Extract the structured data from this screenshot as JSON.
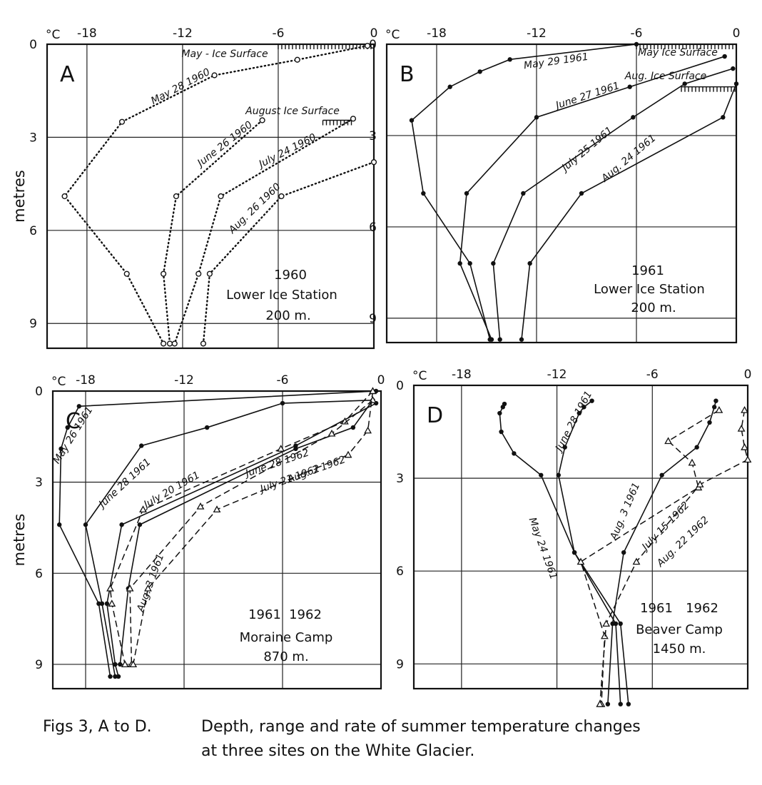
{
  "chart_data": [
    {
      "type": "line",
      "panel_label": "A",
      "unit_label": "°C",
      "ylabel": "metres",
      "x_tick_labels": [
        "-18",
        "-12",
        "-6",
        "0"
      ],
      "y_tick_labels": [
        "0",
        "3",
        "6",
        "9"
      ],
      "xlim": [
        -20.5,
        0
      ],
      "ylim": [
        0,
        9.8
      ],
      "site_text": [
        "1960",
        "Lower Ice Station",
        "200 m."
      ],
      "annotations": [
        "May - Ice Surface",
        "August Ice Surface"
      ],
      "surfaces": [
        {
          "x_start": -6.0,
          "x_end": 0.0,
          "depth": 0.0
        },
        {
          "x_start": -3.2,
          "x_end": -1.4,
          "depth": 2.45
        }
      ],
      "series": [
        {
          "name": "May 28 1960",
          "style": "dotted",
          "marker": "circle",
          "x": [
            -0.4,
            -4.8,
            -10.0,
            -15.8,
            -19.4,
            -15.5,
            -13.2
          ],
          "y": [
            0.05,
            0.5,
            1.0,
            2.5,
            4.9,
            7.4,
            9.65
          ]
        },
        {
          "name": "June 26 1960",
          "style": "dotted",
          "marker": "circle",
          "x": [
            -7.0,
            -12.4,
            -13.2,
            -12.8
          ],
          "y": [
            2.45,
            4.9,
            7.4,
            9.65
          ]
        },
        {
          "name": "July 24 1960",
          "style": "dotted",
          "marker": "circle",
          "x": [
            -1.3,
            -9.6,
            -11.0,
            -12.5
          ],
          "y": [
            2.4,
            4.9,
            7.4,
            9.65
          ]
        },
        {
          "name": "Aug. 26 1960",
          "style": "dotted",
          "marker": "circle",
          "x": [
            0.0,
            -5.8,
            -10.3,
            -10.7
          ],
          "y": [
            3.8,
            4.9,
            7.4,
            9.65
          ]
        }
      ]
    },
    {
      "type": "line",
      "panel_label": "B",
      "unit_label": "°C",
      "ylabel": "",
      "x_tick_labels": [
        "-18",
        "-12",
        "-6",
        "0"
      ],
      "y_tick_labels": [
        "0",
        "3",
        "6",
        "9"
      ],
      "xlim": [
        -21,
        0
      ],
      "ylim": [
        0,
        9.8
      ],
      "site_text": [
        "1961",
        "Lower Ice Station",
        "200 m."
      ],
      "annotations": [
        "May Ice Surface",
        "Aug. Ice Surface"
      ],
      "surfaces": [
        {
          "x_start": -6.0,
          "x_end": 0.0,
          "depth": 0.0
        },
        {
          "x_start": -3.3,
          "x_end": 0.0,
          "depth": 1.4
        }
      ],
      "series": [
        {
          "name": "May 29 1961",
          "style": "solid",
          "marker": "dot",
          "x": [
            -6.0,
            -13.6,
            -15.4,
            -17.2,
            -19.5,
            -18.8,
            -16.0,
            -14.8
          ],
          "y": [
            0.0,
            0.5,
            0.9,
            1.4,
            2.5,
            4.9,
            7.2,
            9.7
          ]
        },
        {
          "name": "June 27 1961",
          "style": "solid",
          "marker": "dot",
          "x": [
            -0.7,
            -6.4,
            -12.0,
            -16.2,
            -16.6,
            -14.7
          ],
          "y": [
            0.4,
            1.4,
            2.4,
            4.9,
            7.2,
            9.7
          ]
        },
        {
          "name": "July 25 1961",
          "style": "solid",
          "marker": "dot",
          "x": [
            -0.2,
            -3.1,
            -6.2,
            -12.8,
            -14.6,
            -14.2
          ],
          "y": [
            0.8,
            1.3,
            2.4,
            4.9,
            7.2,
            9.7
          ]
        },
        {
          "name": "Aug. 24 1961",
          "style": "solid",
          "marker": "dot",
          "x": [
            0.0,
            -0.8,
            -9.3,
            -12.4,
            -12.9
          ],
          "y": [
            1.3,
            2.4,
            4.9,
            7.2,
            9.7
          ]
        }
      ]
    },
    {
      "type": "line",
      "panel_label": "C",
      "unit_label": "°C",
      "ylabel": "metres",
      "x_tick_labels": [
        "-18",
        "-12",
        "-6",
        "0"
      ],
      "y_tick_labels": [
        "0",
        "3",
        "6",
        "9"
      ],
      "xlim": [
        -20,
        0
      ],
      "ylim": [
        0,
        9.8
      ],
      "site_text": [
        "1961",
        "1962",
        "Moraine Camp",
        "870 m."
      ],
      "annotations": [],
      "series": [
        {
          "name": "May 26 1961",
          "style": "solid",
          "marker": "dot",
          "x": [
            -0.3,
            -18.4,
            -19.1,
            -19.5,
            -19.6,
            -17.2,
            -16.5
          ],
          "y": [
            0.0,
            0.5,
            1.2,
            1.9,
            4.4,
            7.0,
            9.4
          ]
        },
        {
          "name": "June 28 1961",
          "style": "solid",
          "marker": "dot",
          "x": [
            -0.5,
            -6.0,
            -10.6,
            -14.6,
            -18.0,
            -17.0,
            -16.2
          ],
          "y": [
            0.3,
            0.4,
            1.2,
            1.8,
            4.4,
            7.0,
            9.4
          ]
        },
        {
          "name": "July 20 1961",
          "style": "solid",
          "marker": "dot",
          "x": [
            -0.3,
            -5.2,
            -15.8,
            -16.7,
            -16.2,
            -16.0
          ],
          "y": [
            0.4,
            1.8,
            4.4,
            7.0,
            9.0,
            9.4
          ]
        },
        {
          "name": "Aug. 3 1961",
          "style": "solid",
          "marker": "dot",
          "x": [
            -0.5,
            -1.7,
            -5.2,
            -14.7,
            -15.4,
            -15.9
          ],
          "y": [
            0.3,
            1.2,
            1.9,
            4.4,
            6.5,
            9.0
          ]
        },
        {
          "name": "June 28 1962",
          "style": "dashed",
          "marker": "triangle",
          "x": [
            -0.5,
            -2.2,
            -6.1,
            -14.5,
            -16.5,
            -16.4,
            -15.6
          ],
          "y": [
            0.0,
            1.0,
            1.9,
            3.9,
            6.5,
            7.0,
            9.0
          ]
        },
        {
          "name": "July 21 1962",
          "style": "dashed",
          "marker": "triangle",
          "x": [
            -0.5,
            -3.0,
            -11.0,
            -15.3,
            -15.2
          ],
          "y": [
            0.3,
            1.4,
            3.8,
            6.5,
            9.0
          ]
        },
        {
          "name": "Aug. 3 1962",
          "style": "dashed",
          "marker": "triangle",
          "x": [
            -0.5,
            -0.8,
            -2.0,
            -10.0,
            -14.2,
            -15.1
          ],
          "y": [
            0.0,
            1.3,
            2.1,
            3.9,
            6.5,
            9.0
          ]
        }
      ]
    },
    {
      "type": "line",
      "panel_label": "D",
      "unit_label": "°C",
      "ylabel": "",
      "x_tick_labels": [
        "-18",
        "-12",
        "-6",
        "0"
      ],
      "y_tick_labels": [
        "0",
        "3",
        "6",
        "9"
      ],
      "xlim": [
        -21,
        0
      ],
      "ylim": [
        0,
        9.8
      ],
      "site_text": [
        "1961",
        "1962",
        "Beaver Camp",
        "1450 m."
      ],
      "annotations": [],
      "series": [
        {
          "name": "May 24 1961",
          "style": "solid",
          "marker": "dot",
          "x": [
            -15.3,
            -15.4,
            -15.6,
            -15.5,
            -14.7,
            -13.0,
            -10.9,
            -8.3,
            -8.0
          ],
          "y": [
            0.6,
            0.7,
            0.9,
            1.5,
            2.2,
            2.9,
            5.4,
            7.7,
            10.3
          ]
        },
        {
          "name": "June 28 1961",
          "style": "solid",
          "marker": "dot",
          "x": [
            -9.8,
            -10.3,
            -10.6,
            -11.5,
            -11.9,
            -10.9,
            -8.0,
            -7.5
          ],
          "y": [
            0.5,
            0.7,
            0.9,
            2.0,
            2.9,
            5.4,
            7.7,
            10.3
          ]
        },
        {
          "name": "Aug. 3 1961",
          "style": "solid",
          "marker": "dot",
          "x": [
            -2.0,
            -2.1,
            -2.4,
            -3.2,
            -5.4,
            -7.8,
            -8.5,
            -8.8
          ],
          "y": [
            0.5,
            0.7,
            1.2,
            2.0,
            2.9,
            5.4,
            7.7,
            10.3
          ]
        },
        {
          "name": "July 15 1962",
          "style": "dashed",
          "marker": "triangle",
          "x": [
            -1.8,
            -5.0,
            -3.5,
            -3.1,
            -10.5,
            -9.0,
            -9.2
          ],
          "y": [
            0.8,
            1.8,
            2.5,
            3.3,
            5.7,
            8.1,
            10.3
          ]
        },
        {
          "name": "Aug. 22 1962",
          "style": "dashed",
          "marker": "triangle",
          "x": [
            -0.2,
            -0.4,
            -0.2,
            0.0,
            -3.0,
            -7.0,
            -8.9,
            -9.3
          ],
          "y": [
            0.8,
            1.4,
            2.0,
            2.4,
            3.2,
            5.7,
            7.7,
            10.3
          ]
        }
      ]
    }
  ],
  "caption": {
    "lead": "Figs 3, A to D.",
    "line1": "Depth, range and rate of summer temperature changes",
    "line2": "at three sites on the White Glacier."
  }
}
